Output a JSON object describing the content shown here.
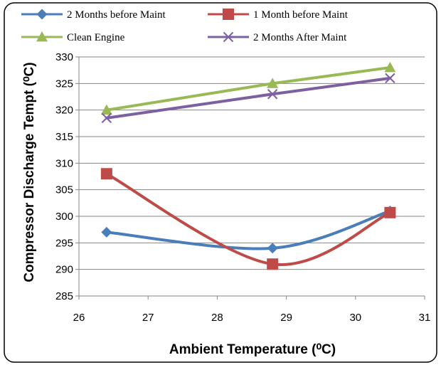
{
  "chart_data": {
    "type": "line",
    "title": "",
    "xlabel": "Ambient Temperature (⁰C)",
    "ylabel": "Compressor Discharge Tempt (⁰C)",
    "xlim": [
      26,
      31
    ],
    "ylim": [
      285,
      330
    ],
    "x_ticks": [
      "26",
      "27",
      "28",
      "29",
      "30",
      "31"
    ],
    "y_ticks": [
      "285",
      "290",
      "295",
      "300",
      "305",
      "310",
      "315",
      "320",
      "325",
      "330"
    ],
    "grid": "horizontal",
    "legend_position": "top",
    "series": [
      {
        "name": "2 Months before Maint",
        "color": "#4a7ebb",
        "marker": "diamond",
        "x": [
          26.4,
          28.8,
          30.5
        ],
        "y": [
          297,
          294,
          301
        ]
      },
      {
        "name": "1 Month before Maint",
        "color": "#be4b48",
        "marker": "square",
        "x": [
          26.4,
          28.8,
          30.5
        ],
        "y": [
          308,
          291,
          300.7
        ]
      },
      {
        "name": "Clean Engine",
        "color": "#98b954",
        "marker": "triangle",
        "x": [
          26.4,
          28.8,
          30.5
        ],
        "y": [
          320,
          325,
          328
        ]
      },
      {
        "name": "2 Months After Maint",
        "color": "#7d60a0",
        "marker": "x",
        "x": [
          26.4,
          28.8,
          30.5
        ],
        "y": [
          318.5,
          323,
          326
        ]
      }
    ]
  }
}
